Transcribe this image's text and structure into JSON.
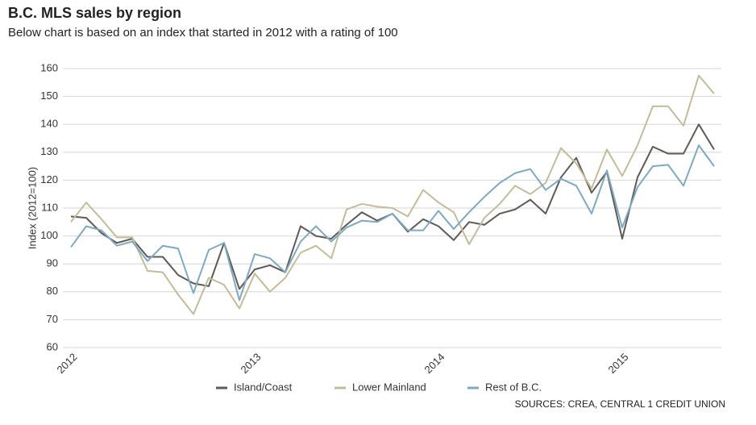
{
  "chart_data": {
    "type": "line",
    "title": "B.C. MLS sales by region",
    "subtitle": "Below chart is based on an index that started in 2012 with a rating of 100",
    "y_label": "Index (2012=100)",
    "source": "SOURCES: CREA, CENTRAL 1 CREDIT UNION",
    "categories": [
      "2012",
      null,
      null,
      null,
      null,
      null,
      null,
      null,
      null,
      null,
      null,
      null,
      "2013",
      null,
      null,
      null,
      null,
      null,
      null,
      null,
      null,
      null,
      null,
      null,
      "2014",
      null,
      null,
      null,
      null,
      null,
      null,
      null,
      null,
      null,
      null,
      null,
      "2015",
      null,
      null,
      null,
      null,
      null,
      null
    ],
    "series": [
      {
        "name": "Island/Coast",
        "color": "#5f5a55",
        "values": [
          107,
          106.5,
          101,
          97.5,
          99,
          92.5,
          92.5,
          86,
          83,
          82,
          97.5,
          81,
          88,
          89.5,
          87,
          103.5,
          100,
          99,
          104,
          108.5,
          105.5,
          108,
          101.5,
          106,
          103.5,
          98.5,
          105,
          104,
          108,
          109.5,
          113,
          108,
          121,
          128,
          115.5,
          123,
          99,
          121,
          132,
          129.5,
          129.5,
          140,
          131
        ]
      },
      {
        "name": "Lower Mainland",
        "color": "#c3bc9c",
        "values": [
          105,
          112,
          106,
          99.5,
          99.5,
          87.5,
          87,
          79,
          72,
          85,
          82.5,
          74,
          86.5,
          80,
          85,
          94,
          96.5,
          92,
          109.5,
          111.5,
          110.5,
          110,
          107,
          116.5,
          112,
          108.5,
          97,
          106.5,
          111.5,
          118,
          115,
          119,
          131.5,
          126,
          117,
          131,
          121.5,
          132.5,
          146.5,
          146.5,
          139.5,
          157.5,
          151
        ]
      },
      {
        "name": "Rest of B.C.",
        "color": "#7fa9c0",
        "values": [
          96,
          103.5,
          102,
          96.5,
          98,
          91,
          96.5,
          95.5,
          79.5,
          95,
          97.5,
          77,
          93.5,
          92,
          87,
          98,
          103.5,
          98,
          103,
          105.5,
          105,
          108,
          102,
          102,
          109,
          102.5,
          108.5,
          114,
          119,
          122.5,
          124,
          116.5,
          120.5,
          118,
          108,
          123.5,
          103,
          117.5,
          125,
          125.5,
          118,
          132.5,
          125
        ]
      }
    ],
    "ylim": [
      60,
      160
    ],
    "yticks": [
      60,
      70,
      80,
      90,
      100,
      110,
      120,
      130,
      140,
      150,
      160
    ],
    "grid": true
  }
}
